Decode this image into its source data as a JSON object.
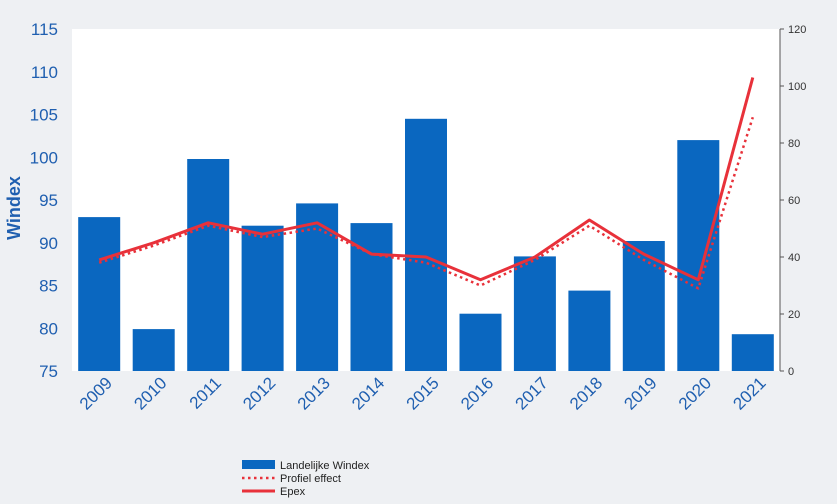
{
  "chart_data": {
    "type": "bar",
    "ylabel": "Windex",
    "categories": [
      "2009",
      "2010",
      "2011",
      "2012",
      "2013",
      "2014",
      "2015",
      "2016",
      "2017",
      "2018",
      "2019",
      "2020",
      "2021"
    ],
    "left_axis": {
      "min": 75,
      "max": 115,
      "ticks": [
        75,
        80,
        85,
        90,
        95,
        100,
        105,
        110,
        115
      ]
    },
    "right_axis": {
      "min": 0,
      "max": 120,
      "ticks": [
        0,
        20,
        40,
        60,
        80,
        100,
        120
      ]
    },
    "series": [
      {
        "name": "Landelijke Windex",
        "kind": "bar",
        "axis": "left",
        "color": "#0a67c0",
        "values": [
          93.0,
          79.9,
          99.8,
          92.0,
          94.6,
          92.3,
          104.5,
          81.7,
          88.4,
          84.4,
          90.2,
          102.0,
          79.3
        ]
      },
      {
        "name": "Profiel effect",
        "kind": "line-dotted",
        "axis": "right",
        "color": "#e8313a",
        "values": [
          38,
          44,
          51,
          47,
          50,
          41,
          38,
          30,
          39,
          51,
          39,
          29,
          89
        ]
      },
      {
        "name": "Epex",
        "kind": "line",
        "axis": "right",
        "color": "#e8313a",
        "values": [
          39,
          45,
          52,
          48,
          52,
          41,
          40,
          32,
          40,
          53,
          41,
          32,
          103
        ]
      }
    ],
    "grid": false,
    "legend_position": "bottom"
  }
}
